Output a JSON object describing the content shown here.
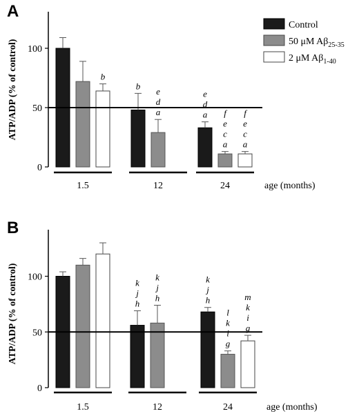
{
  "chart_data": [
    {
      "type": "bar",
      "panel_letter": "A",
      "ylabel": "ATP/ADP (% of control)",
      "xlabel": "age (months)",
      "ylim": [
        0,
        130
      ],
      "yticks": [
        "0",
        "50",
        "100"
      ],
      "reference_line": 50,
      "categories": [
        "1.5",
        "12",
        "24"
      ],
      "legend": [
        {
          "name": "Control",
          "sub": "",
          "color": "#1a1a1a"
        },
        {
          "name": "50 μM Aβ",
          "sub": "25-35",
          "color": "#8c8c8c"
        },
        {
          "name": "2 μM Aβ",
          "sub": "1-40",
          "color": "#ffffff"
        }
      ],
      "series": [
        {
          "name": "Control",
          "values": [
            100,
            48,
            33
          ],
          "errors": [
            9,
            14,
            5
          ],
          "annotations": [
            [],
            [
              "b"
            ],
            [
              "e",
              "d",
              "a"
            ]
          ]
        },
        {
          "name": "50 μM Aβ25-35",
          "values": [
            72,
            29,
            11
          ],
          "errors": [
            17,
            11,
            2
          ],
          "annotations": [
            [],
            [
              "e",
              "d",
              "a"
            ],
            [
              "f",
              "e",
              "c",
              "a"
            ]
          ]
        },
        {
          "name": "2 μM Aβ1-40",
          "values": [
            64,
            null,
            11
          ],
          "errors": [
            6,
            null,
            2
          ],
          "annotations": [
            [
              "b"
            ],
            [],
            [
              "f",
              "e",
              "c",
              "a"
            ]
          ]
        }
      ]
    },
    {
      "type": "bar",
      "panel_letter": "B",
      "ylabel": "ATP/ADP (%  of control)",
      "xlabel": "age (months)",
      "ylim": [
        0,
        135
      ],
      "yticks": [
        "0",
        "50",
        "100"
      ],
      "reference_line": 50,
      "categories": [
        "1.5",
        "12",
        "24"
      ],
      "series": [
        {
          "name": "Control",
          "values": [
            100,
            56,
            68
          ],
          "errors": [
            4,
            13,
            4
          ],
          "annotations": [
            [],
            [
              "k",
              "j",
              "h"
            ],
            [
              "k",
              "j",
              "h"
            ]
          ]
        },
        {
          "name": "50 μM Aβ25-35",
          "values": [
            110,
            58,
            30
          ],
          "errors": [
            6,
            16,
            3
          ],
          "annotations": [
            [],
            [
              "k",
              "j",
              "h"
            ],
            [
              "l",
              "k",
              "i",
              "g"
            ]
          ]
        },
        {
          "name": "2 μM Aβ1-40",
          "values": [
            120,
            null,
            42
          ],
          "errors": [
            10,
            null,
            5
          ],
          "annotations": [
            [],
            [],
            [
              "m",
              "k",
              "i",
              "g"
            ]
          ]
        }
      ]
    }
  ]
}
